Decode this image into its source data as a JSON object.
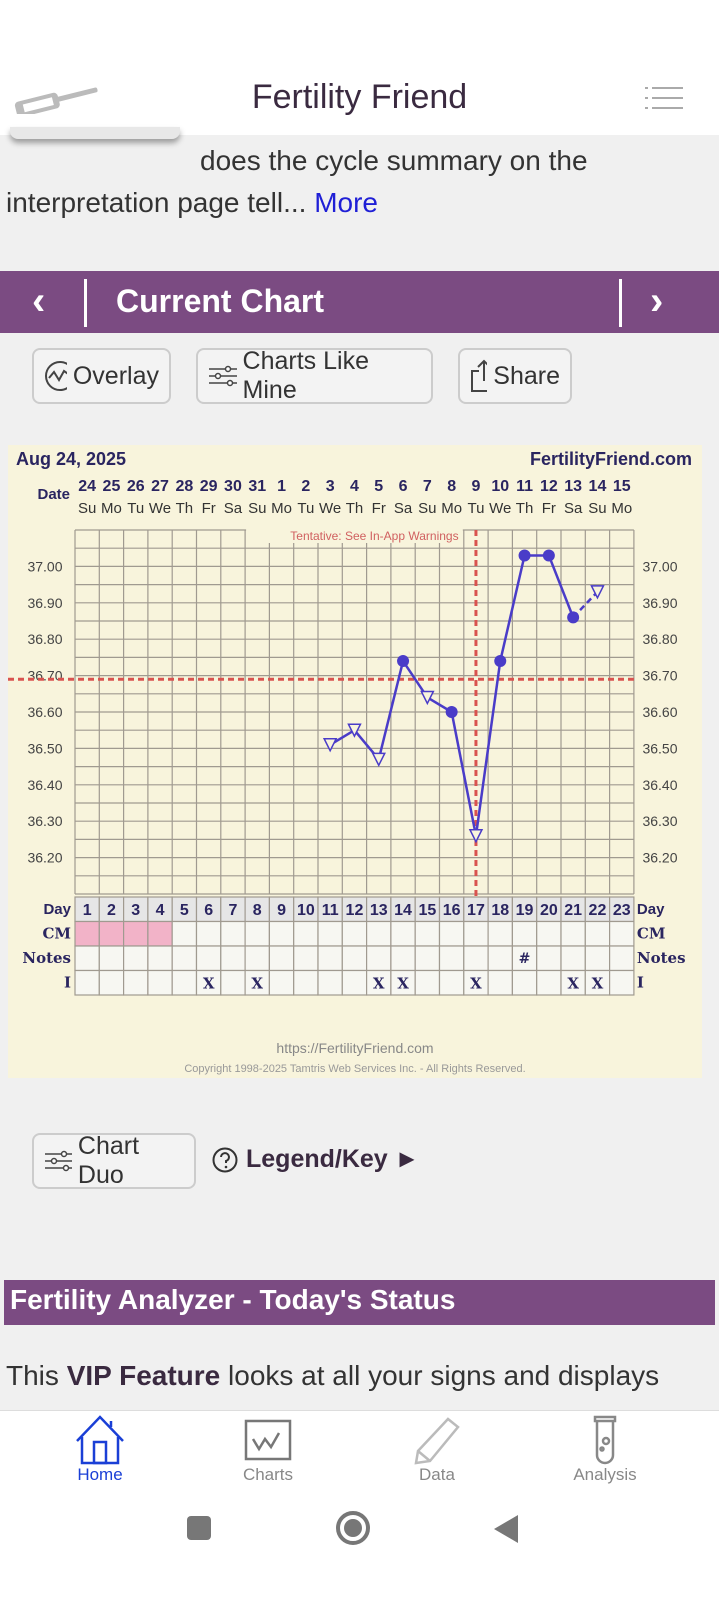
{
  "header": {
    "title": "Fertility Friend"
  },
  "article": {
    "line1": "does the cycle summary on the",
    "line2": "interpretation page tell...",
    "more": "More"
  },
  "chart_bar": {
    "title": "Current Chart"
  },
  "buttons": {
    "overlay": "Overlay",
    "charts_like_mine": "Charts Like Mine",
    "share": "Share",
    "chart_duo": "Chart Duo",
    "legend": "Legend/Key ►"
  },
  "analyzer": {
    "title": "Fertility Analyzer - Today's Status",
    "text_pre": "This ",
    "text_bold": "VIP Feature",
    "text_post": " looks at all your signs and displays"
  },
  "bottom_nav": [
    {
      "label": "Home",
      "active": true
    },
    {
      "label": "Charts"
    },
    {
      "label": "Data"
    },
    {
      "label": "Analysis"
    }
  ],
  "colors": {
    "purple": "#7b4b82",
    "line": "#4a3cc8",
    "coverline": "#d9534f",
    "active": "#1a3fd6"
  },
  "chart_data": {
    "type": "line",
    "start_date": "Aug 24, 2025",
    "site": "FertilityFriend.com",
    "warning": "Tentative: See In-App Warnings",
    "date_label": "Date",
    "dates": [
      "24",
      "25",
      "26",
      "27",
      "28",
      "29",
      "30",
      "31",
      "1",
      "2",
      "3",
      "4",
      "5",
      "6",
      "7",
      "8",
      "9",
      "10",
      "11",
      "12",
      "13",
      "14",
      "15"
    ],
    "weekdays": [
      "Su",
      "Mo",
      "Tu",
      "We",
      "Th",
      "Fr",
      "Sa",
      "Su",
      "Mo",
      "Tu",
      "We",
      "Th",
      "Fr",
      "Sa",
      "Su",
      "Mo",
      "Tu",
      "We",
      "Th",
      "Fr",
      "Sa",
      "Su",
      "Mo"
    ],
    "y_ticks": [
      "37.00",
      "36.90",
      "36.80",
      "36.70",
      "36.60",
      "36.50",
      "36.40",
      "36.30",
      "36.20"
    ],
    "ylim": [
      36.1,
      37.1
    ],
    "temps": [
      {
        "day": 11,
        "value": 36.51,
        "marker": "open-triangle"
      },
      {
        "day": 12,
        "value": 36.55,
        "marker": "open-triangle"
      },
      {
        "day": 13,
        "value": 36.47,
        "marker": "open-triangle"
      },
      {
        "day": 14,
        "value": 36.74,
        "marker": "dot"
      },
      {
        "day": 15,
        "value": 36.64,
        "marker": "open-triangle"
      },
      {
        "day": 16,
        "value": 36.6,
        "marker": "dot"
      },
      {
        "day": 17,
        "value": 36.26,
        "marker": "open-triangle"
      },
      {
        "day": 18,
        "value": 36.74,
        "marker": "dot"
      },
      {
        "day": 19,
        "value": 37.03,
        "marker": "dot"
      },
      {
        "day": 20,
        "value": 37.03,
        "marker": "dot"
      },
      {
        "day": 21,
        "value": 36.86,
        "marker": "dot"
      },
      {
        "day": 22,
        "value": 36.93,
        "marker": "open-triangle",
        "dashed": true
      }
    ],
    "coverline": 36.69,
    "ovulation_day": 17,
    "row_labels": {
      "day": "Day",
      "cm": "CM",
      "notes": "Notes",
      "i": "I"
    },
    "cm_days": [
      1,
      2,
      3,
      4
    ],
    "notes": [
      {
        "day": 19,
        "text": "#"
      }
    ],
    "i_days": [
      6,
      8,
      13,
      14,
      17,
      21,
      22
    ],
    "i_mark": "X",
    "footer_url": "https://FertilityFriend.com",
    "copyright": "Copyright 1998-2025 Tamtris Web Services Inc. - All Rights Reserved."
  }
}
